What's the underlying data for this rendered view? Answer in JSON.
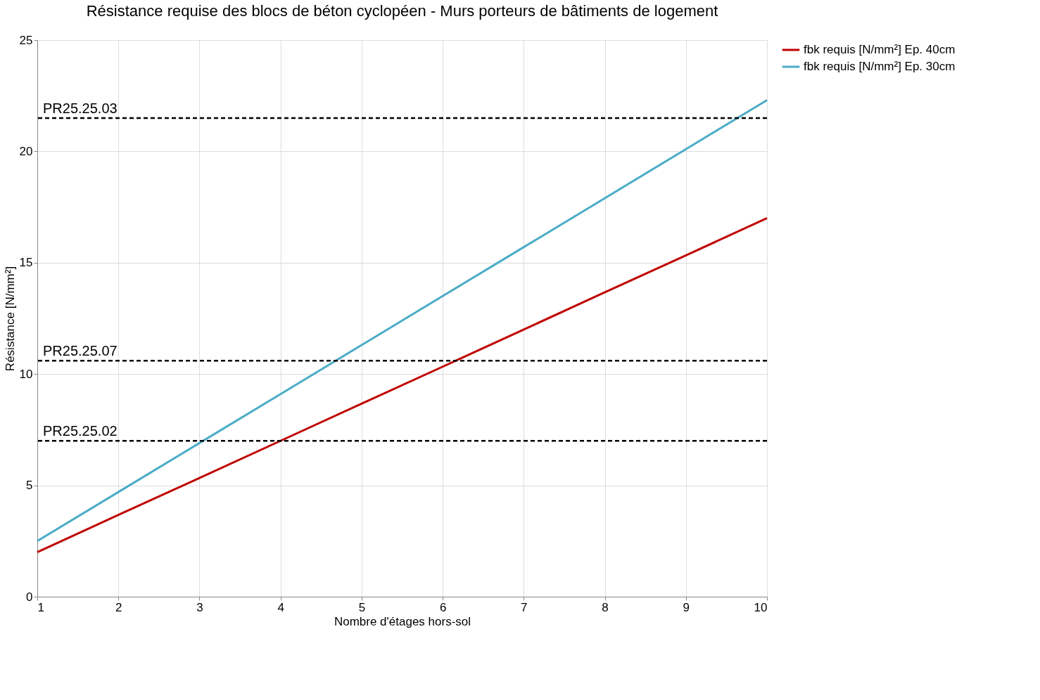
{
  "chart_data": {
    "type": "line",
    "title": "Résistance requise des blocs de béton cyclopéen - Murs porteurs de bâtiments de logement",
    "xlabel": "Nombre d'étages hors-sol",
    "ylabel": "Résistance [N/mm²]",
    "x": [
      1,
      2,
      3,
      4,
      5,
      6,
      7,
      8,
      9,
      10
    ],
    "series": [
      {
        "name": "fbk requis [N/mm²] Ep. 40cm",
        "color": "#c00000",
        "values": [
          2,
          3.67,
          5.33,
          7,
          8.67,
          10.33,
          12,
          13.67,
          15.33,
          17
        ]
      },
      {
        "name": "fbk requis [N/mm²] Ep. 30cm",
        "color": "#4bacc6",
        "values": [
          2.5,
          4.7,
          6.9,
          9.1,
          11.3,
          13.5,
          15.7,
          17.9,
          20.1,
          22.3
        ]
      }
    ],
    "xlim": [
      1,
      10
    ],
    "xticks": [
      1,
      2,
      3,
      4,
      5,
      6,
      7,
      8,
      9,
      10
    ],
    "ylim": [
      0,
      25
    ],
    "yticks": [
      0,
      5,
      10,
      15,
      20,
      25
    ],
    "ref_lines": [
      {
        "axis": "y",
        "value": 21.5,
        "label": "PR25.25.03",
        "color": "#000000",
        "line_style": "dashed"
      },
      {
        "axis": "y",
        "value": 10.6,
        "label": "PR25.25.07",
        "color": "#000000",
        "line_style": "dashed"
      },
      {
        "axis": "y",
        "value": 7,
        "label": "PR25.25.02",
        "color": "#000000",
        "line_style": "dashed"
      }
    ],
    "grid": true,
    "legend": "right",
    "marker": "none",
    "line_style": "solid"
  }
}
